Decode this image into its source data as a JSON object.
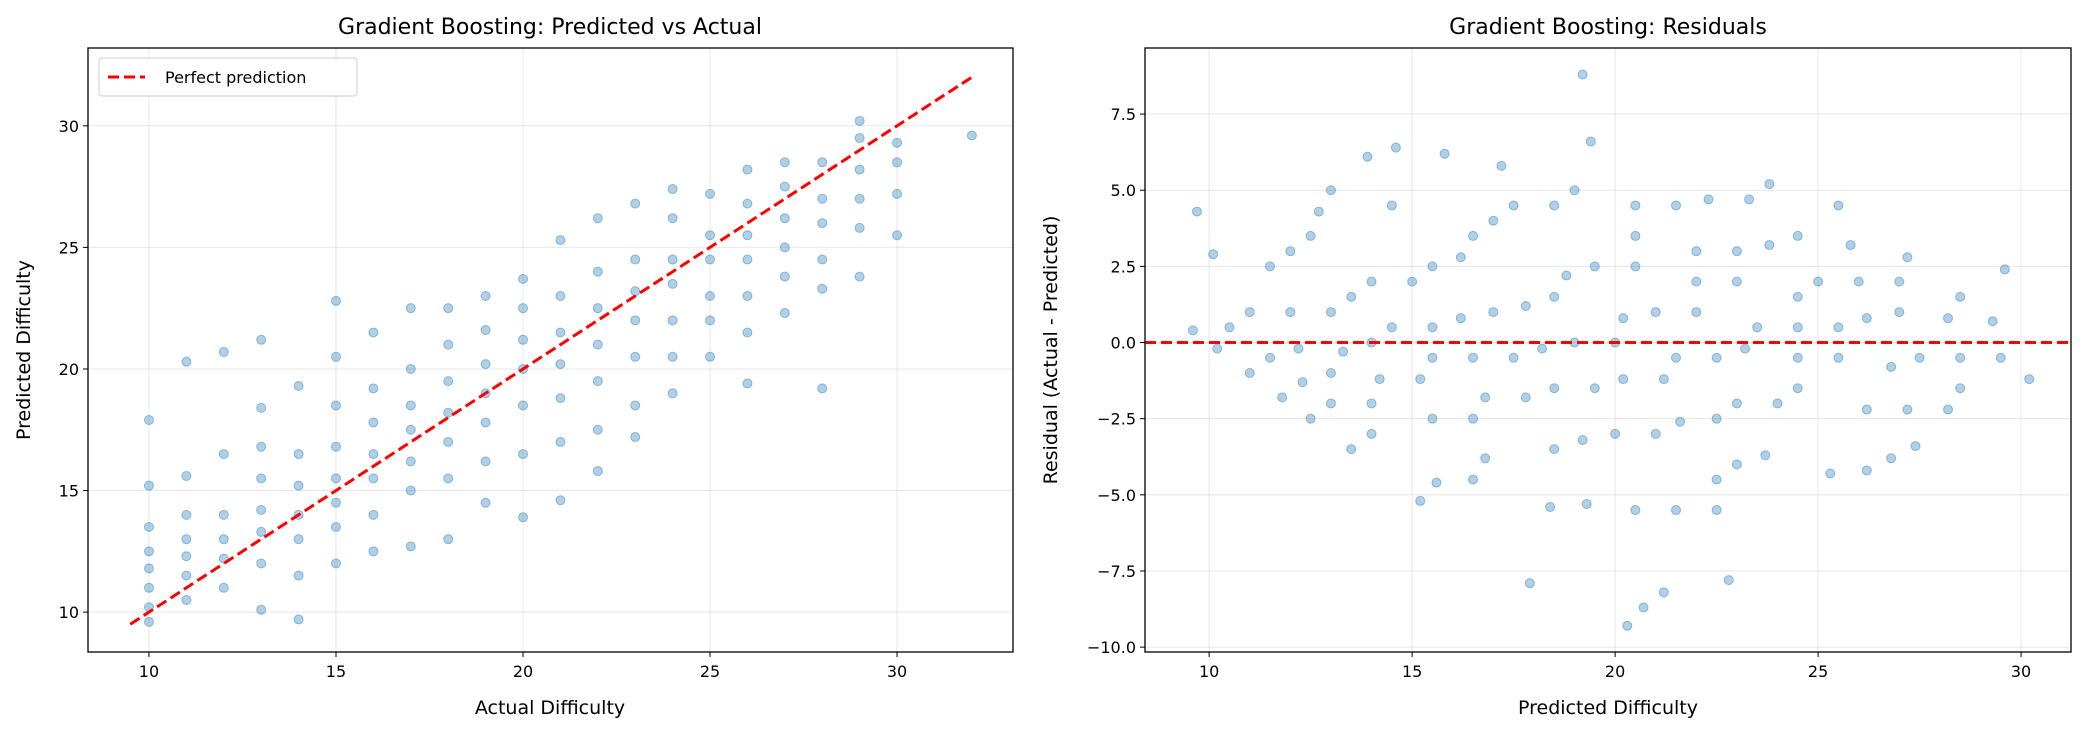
{
  "chart_data": [
    {
      "type": "scatter",
      "title": "Gradient Boosting: Predicted vs Actual",
      "xlabel": "Actual Difficulty",
      "ylabel": "Predicted Difficulty",
      "xlim": [
        8.37,
        33.1
      ],
      "ylim": [
        8.36,
        33.2
      ],
      "xticks": [
        10,
        15,
        20,
        25,
        30
      ],
      "yticks": [
        10,
        15,
        20,
        25,
        30
      ],
      "grid": true,
      "legend": {
        "placement": "top-left",
        "entries": [
          "Perfect prediction"
        ]
      },
      "point_color": "#1f77b4",
      "point_alpha": 0.35,
      "reference_line": {
        "name": "Perfect prediction",
        "color": "#ff0000",
        "style": "dashed",
        "from": [
          9.5,
          9.5
        ],
        "to": [
          32,
          32
        ]
      },
      "groups": [
        {
          "actual": 10,
          "predicted": [
            9.6,
            10.2,
            11.0,
            11.8,
            12.5,
            13.5,
            15.2,
            17.9
          ]
        },
        {
          "actual": 11,
          "predicted": [
            10.5,
            11.5,
            12.3,
            13.0,
            14.0,
            15.6,
            20.3
          ]
        },
        {
          "actual": 12,
          "predicted": [
            11.0,
            12.2,
            13.0,
            14.0,
            16.5,
            20.7
          ]
        },
        {
          "actual": 13,
          "predicted": [
            10.1,
            12.0,
            13.3,
            14.2,
            15.5,
            16.8,
            18.4,
            21.2
          ]
        },
        {
          "actual": 14,
          "predicted": [
            9.7,
            11.5,
            13.0,
            14.0,
            15.2,
            16.5,
            19.3
          ]
        },
        {
          "actual": 15,
          "predicted": [
            12.0,
            13.5,
            14.5,
            15.5,
            16.8,
            18.5,
            20.5,
            22.8
          ]
        },
        {
          "actual": 16,
          "predicted": [
            12.5,
            14.0,
            15.5,
            16.5,
            17.8,
            19.2,
            21.5
          ]
        },
        {
          "actual": 17,
          "predicted": [
            12.7,
            15.0,
            16.2,
            17.5,
            18.5,
            20.0,
            22.5
          ]
        },
        {
          "actual": 18,
          "predicted": [
            13.0,
            15.5,
            17.0,
            18.2,
            19.5,
            21.0,
            22.5
          ]
        },
        {
          "actual": 19,
          "predicted": [
            14.5,
            16.2,
            17.8,
            19.0,
            20.2,
            21.6,
            23.0
          ]
        },
        {
          "actual": 20,
          "predicted": [
            13.9,
            16.5,
            18.5,
            20.0,
            21.2,
            22.5,
            23.7
          ]
        },
        {
          "actual": 21,
          "predicted": [
            14.6,
            17.0,
            18.8,
            20.2,
            21.5,
            23.0,
            25.3
          ]
        },
        {
          "actual": 22,
          "predicted": [
            15.8,
            17.5,
            19.5,
            21.0,
            22.5,
            24.0,
            26.2
          ]
        },
        {
          "actual": 23,
          "predicted": [
            17.2,
            18.5,
            20.5,
            22.0,
            23.2,
            24.5,
            26.8
          ]
        },
        {
          "actual": 24,
          "predicted": [
            19.0,
            20.5,
            22.0,
            23.5,
            24.5,
            26.2,
            27.4
          ]
        },
        {
          "actual": 25,
          "predicted": [
            20.5,
            22.0,
            23.0,
            24.5,
            25.5,
            27.2
          ]
        },
        {
          "actual": 26,
          "predicted": [
            19.4,
            21.5,
            23.0,
            24.5,
            25.5,
            26.8,
            28.2
          ]
        },
        {
          "actual": 27,
          "predicted": [
            22.3,
            23.8,
            25.0,
            26.2,
            27.5,
            28.5
          ]
        },
        {
          "actual": 28,
          "predicted": [
            19.2,
            23.3,
            24.5,
            26.0,
            27.0,
            28.5
          ]
        },
        {
          "actual": 29,
          "predicted": [
            23.8,
            25.8,
            27.0,
            28.2,
            29.5,
            30.2
          ]
        },
        {
          "actual": 30,
          "predicted": [
            25.5,
            27.2,
            28.5,
            29.3
          ]
        },
        {
          "actual": 32,
          "predicted": [
            29.6
          ]
        }
      ]
    },
    {
      "type": "scatter",
      "title": "Gradient Boosting: Residuals",
      "xlabel": "Predicted Difficulty",
      "ylabel": "Residual (Actual - Predicted)",
      "xlim": [
        8.42,
        31.23
      ],
      "ylim": [
        -10.16,
        9.67
      ],
      "xticks": [
        10,
        15,
        20,
        25,
        30
      ],
      "yticks": [
        -10.0,
        -7.5,
        -5.0,
        -2.5,
        0.0,
        2.5,
        5.0,
        7.5
      ],
      "ytick_labels": [
        "−10.0",
        "−7.5",
        "−5.0",
        "−2.5",
        "0.0",
        "2.5",
        "5.0",
        "7.5"
      ],
      "grid": true,
      "point_color": "#1f77b4",
      "point_alpha": 0.35,
      "reference_line": {
        "color": "#ff0000",
        "style": "dashed",
        "y": 0
      },
      "points": [
        [
          9.6,
          0.4
        ],
        [
          10.2,
          -0.2
        ],
        [
          11.0,
          -1.0
        ],
        [
          11.8,
          -1.8
        ],
        [
          12.5,
          -2.5
        ],
        [
          13.5,
          -3.5
        ],
        [
          15.2,
          -5.2
        ],
        [
          17.9,
          -7.9
        ],
        [
          10.5,
          0.5
        ],
        [
          11.5,
          -0.5
        ],
        [
          12.3,
          -1.3
        ],
        [
          13.0,
          -2.0
        ],
        [
          14.0,
          -3.0
        ],
        [
          15.6,
          -4.6
        ],
        [
          20.3,
          -9.3
        ],
        [
          11.0,
          1.0
        ],
        [
          12.2,
          -0.2
        ],
        [
          13.0,
          -1.0
        ],
        [
          14.0,
          -2.0
        ],
        [
          16.5,
          -4.5
        ],
        [
          20.7,
          -8.7
        ],
        [
          10.1,
          2.9
        ],
        [
          12.0,
          1.0
        ],
        [
          13.3,
          -0.3
        ],
        [
          14.2,
          -1.2
        ],
        [
          15.5,
          -2.5
        ],
        [
          16.8,
          -3.8
        ],
        [
          18.4,
          -5.4
        ],
        [
          21.2,
          -8.2
        ],
        [
          9.7,
          4.3
        ],
        [
          11.5,
          2.5
        ],
        [
          13.0,
          1.0
        ],
        [
          14.0,
          0.0
        ],
        [
          15.2,
          -1.2
        ],
        [
          16.5,
          -2.5
        ],
        [
          19.3,
          -5.3
        ],
        [
          12.0,
          3.0
        ],
        [
          13.5,
          1.5
        ],
        [
          14.5,
          0.5
        ],
        [
          15.5,
          -0.5
        ],
        [
          16.8,
          -1.8
        ],
        [
          18.5,
          -3.5
        ],
        [
          20.5,
          -5.5
        ],
        [
          22.8,
          -7.8
        ],
        [
          12.5,
          3.5
        ],
        [
          14.0,
          2.0
        ],
        [
          15.5,
          0.5
        ],
        [
          16.5,
          -0.5
        ],
        [
          17.8,
          -1.8
        ],
        [
          19.2,
          -3.2
        ],
        [
          21.5,
          -5.5
        ],
        [
          12.7,
          4.3
        ],
        [
          15.0,
          2.0
        ],
        [
          16.2,
          0.8
        ],
        [
          17.5,
          -0.5
        ],
        [
          18.5,
          -1.5
        ],
        [
          20.0,
          -3.0
        ],
        [
          22.5,
          -5.5
        ],
        [
          13.0,
          5.0
        ],
        [
          15.5,
          2.5
        ],
        [
          17.0,
          1.0
        ],
        [
          18.2,
          -0.2
        ],
        [
          19.5,
          -1.5
        ],
        [
          21.0,
          -3.0
        ],
        [
          22.5,
          -4.5
        ],
        [
          14.5,
          4.5
        ],
        [
          16.2,
          2.8
        ],
        [
          17.8,
          1.2
        ],
        [
          19.0,
          0.0
        ],
        [
          20.2,
          -1.2
        ],
        [
          21.6,
          -2.6
        ],
        [
          23.0,
          -4.0
        ],
        [
          13.9,
          6.1
        ],
        [
          16.5,
          3.5
        ],
        [
          18.5,
          1.5
        ],
        [
          20.0,
          0.0
        ],
        [
          21.2,
          -1.2
        ],
        [
          22.5,
          -2.5
        ],
        [
          23.7,
          -3.7
        ],
        [
          14.6,
          6.4
        ],
        [
          17.0,
          4.0
        ],
        [
          18.8,
          2.2
        ],
        [
          20.2,
          0.8
        ],
        [
          21.5,
          -0.5
        ],
        [
          23.0,
          -2.0
        ],
        [
          25.3,
          -4.3
        ],
        [
          15.8,
          6.2
        ],
        [
          17.5,
          4.5
        ],
        [
          19.5,
          2.5
        ],
        [
          21.0,
          1.0
        ],
        [
          22.5,
          -0.5
        ],
        [
          24.0,
          -2.0
        ],
        [
          26.2,
          -4.2
        ],
        [
          17.2,
          5.8
        ],
        [
          18.5,
          4.5
        ],
        [
          20.5,
          2.5
        ],
        [
          22.0,
          1.0
        ],
        [
          23.2,
          -0.2
        ],
        [
          24.5,
          -1.5
        ],
        [
          26.8,
          -3.8
        ],
        [
          19.0,
          5.0
        ],
        [
          20.5,
          3.5
        ],
        [
          22.0,
          2.0
        ],
        [
          23.5,
          0.5
        ],
        [
          24.5,
          -0.5
        ],
        [
          26.2,
          -2.2
        ],
        [
          27.4,
          -3.4
        ],
        [
          20.5,
          4.5
        ],
        [
          22.0,
          3.0
        ],
        [
          23.0,
          2.0
        ],
        [
          24.5,
          0.5
        ],
        [
          25.5,
          -0.5
        ],
        [
          27.2,
          -2.2
        ],
        [
          19.4,
          6.6
        ],
        [
          21.5,
          4.5
        ],
        [
          23.0,
          3.0
        ],
        [
          24.5,
          1.5
        ],
        [
          25.5,
          0.5
        ],
        [
          26.8,
          -0.8
        ],
        [
          28.2,
          -2.2
        ],
        [
          22.3,
          4.7
        ],
        [
          23.8,
          3.2
        ],
        [
          25.0,
          2.0
        ],
        [
          26.2,
          0.8
        ],
        [
          27.5,
          -0.5
        ],
        [
          28.5,
          -1.5
        ],
        [
          19.2,
          8.8
        ],
        [
          23.3,
          4.7
        ],
        [
          24.5,
          3.5
        ],
        [
          26.0,
          2.0
        ],
        [
          27.0,
          1.0
        ],
        [
          28.5,
          -0.5
        ],
        [
          23.8,
          5.2
        ],
        [
          25.8,
          3.2
        ],
        [
          27.0,
          2.0
        ],
        [
          28.2,
          0.8
        ],
        [
          29.5,
          -0.5
        ],
        [
          30.2,
          -1.2
        ],
        [
          25.5,
          4.5
        ],
        [
          27.2,
          2.8
        ],
        [
          28.5,
          1.5
        ],
        [
          29.3,
          0.7
        ],
        [
          29.6,
          2.4
        ]
      ]
    }
  ]
}
